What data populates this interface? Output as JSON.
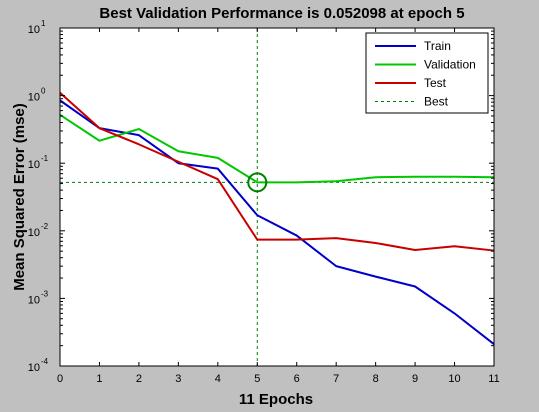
{
  "chart_data": {
    "type": "line",
    "title": "Best Validation Performance is 0.052098 at epoch 5",
    "xlabel": "11 Epochs",
    "ylabel": "Mean Squared Error  (mse)",
    "xlim": [
      0,
      11
    ],
    "ylim": [
      0.0001,
      10
    ],
    "yscale": "log",
    "x_ticks": [
      "0",
      "1",
      "2",
      "3",
      "4",
      "5",
      "6",
      "7",
      "8",
      "9",
      "10",
      "11"
    ],
    "y_ticks": [
      {
        "base": "10",
        "exp": "1"
      },
      {
        "base": "10",
        "exp": "0"
      },
      {
        "base": "10",
        "exp": "-1"
      },
      {
        "base": "10",
        "exp": "-2"
      },
      {
        "base": "10",
        "exp": "-3"
      },
      {
        "base": "10",
        "exp": "-4"
      }
    ],
    "x": [
      0,
      1,
      2,
      3,
      4,
      5,
      6,
      7,
      8,
      9,
      10,
      11
    ],
    "series": [
      {
        "name": "Train",
        "color": "#0000c8",
        "values": [
          0.85,
          0.33,
          0.26,
          0.1,
          0.083,
          0.017,
          0.0085,
          0.003,
          0.0021,
          0.0015,
          0.0006,
          0.00021
        ]
      },
      {
        "name": "Validation",
        "color": "#00c800",
        "values": [
          0.52,
          0.215,
          0.32,
          0.15,
          0.12,
          0.052098,
          0.052,
          0.054,
          0.062,
          0.063,
          0.063,
          0.062
        ]
      },
      {
        "name": "Test",
        "color": "#c80000",
        "values": [
          1.1,
          0.33,
          0.19,
          0.105,
          0.058,
          0.0074,
          0.0074,
          0.0078,
          0.0066,
          0.0052,
          0.0059,
          0.0051
        ]
      }
    ],
    "best": {
      "label": "Best",
      "epoch": 5,
      "value": 0.052098,
      "color": "#008000"
    },
    "legend": "top-right",
    "grid": false
  }
}
